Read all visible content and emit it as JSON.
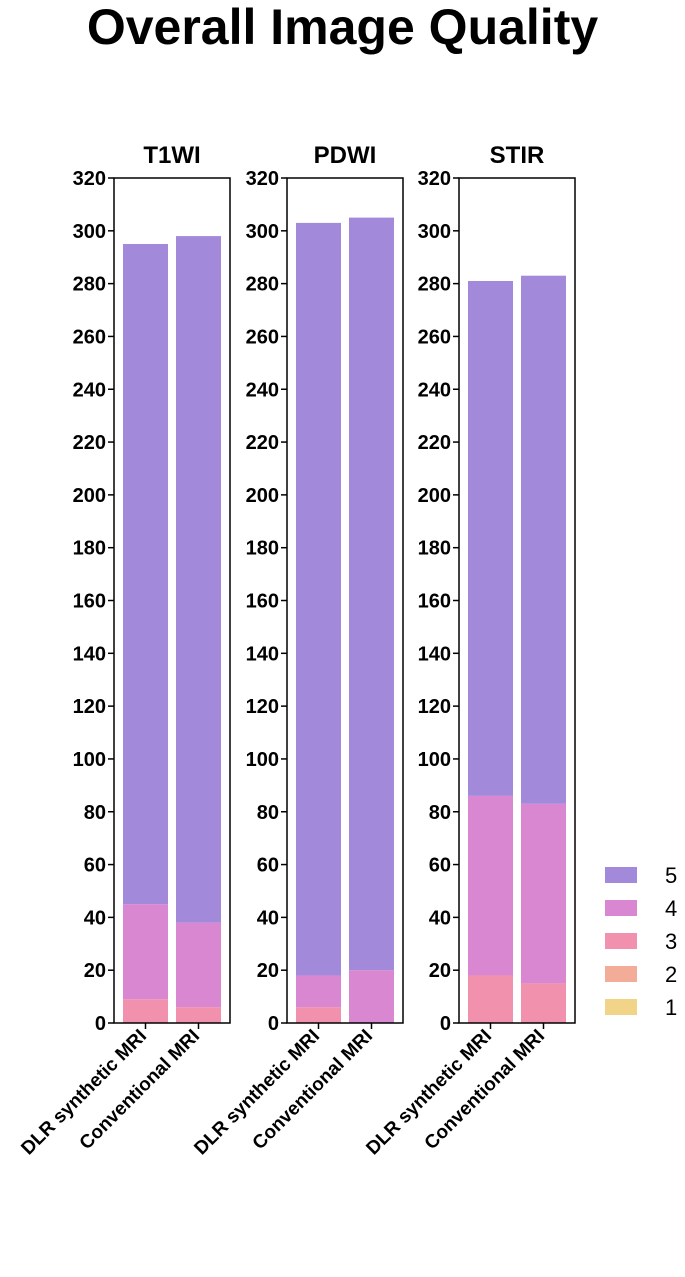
{
  "title": "Overall Image Quality",
  "colors": {
    "1": "#F2D488",
    "2": "#F2AC98",
    "3": "#F291AD",
    "4": "#DA87D2",
    "5": "#A389DA"
  },
  "chart_data": {
    "type": "bar",
    "stacked": true,
    "title": "Overall Image Quality",
    "ylim": [
      0,
      320
    ],
    "yticks": [
      0,
      20,
      40,
      60,
      80,
      100,
      120,
      140,
      160,
      180,
      200,
      220,
      240,
      260,
      280,
      300,
      320
    ],
    "legend": {
      "position": "right",
      "entries": [
        "5",
        "4",
        "3",
        "2",
        "1"
      ]
    },
    "panels": [
      {
        "title": "T1WI",
        "categories": [
          "DLR synthetic MRI",
          "Conventional MRI"
        ],
        "series": [
          {
            "name": "1",
            "values": [
              0,
              0
            ]
          },
          {
            "name": "2",
            "values": [
              0,
              0
            ]
          },
          {
            "name": "3",
            "values": [
              9,
              6
            ]
          },
          {
            "name": "4",
            "values": [
              36,
              32
            ]
          },
          {
            "name": "5",
            "values": [
              250,
              260
            ]
          }
        ]
      },
      {
        "title": "PDWI",
        "categories": [
          "DLR synthetic MRI",
          "Conventional MRI"
        ],
        "series": [
          {
            "name": "1",
            "values": [
              0,
              0
            ]
          },
          {
            "name": "2",
            "values": [
              0,
              0
            ]
          },
          {
            "name": "3",
            "values": [
              6,
              0
            ]
          },
          {
            "name": "4",
            "values": [
              12,
              20
            ]
          },
          {
            "name": "5",
            "values": [
              285,
              285
            ]
          }
        ]
      },
      {
        "title": "STIR",
        "categories": [
          "DLR synthetic MRI",
          "Conventional MRI"
        ],
        "series": [
          {
            "name": "1",
            "values": [
              0,
              0
            ]
          },
          {
            "name": "2",
            "values": [
              0,
              0
            ]
          },
          {
            "name": "3",
            "values": [
              18,
              15
            ]
          },
          {
            "name": "4",
            "values": [
              68,
              68
            ]
          },
          {
            "name": "5",
            "values": [
              195,
              200
            ]
          }
        ]
      }
    ]
  }
}
